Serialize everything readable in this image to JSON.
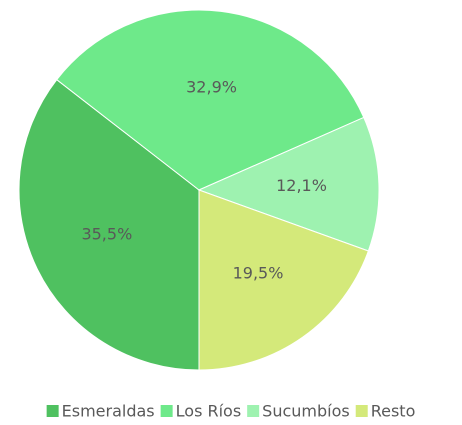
{
  "chart_data": {
    "type": "pie",
    "categories": [
      "Esmeraldas",
      "Los Ríos",
      "Sucumbíos",
      "Resto"
    ],
    "values": [
      35.5,
      32.9,
      12.1,
      19.5
    ],
    "value_labels": [
      "35,5%",
      "32,9%",
      "12,1%",
      "19,5%"
    ],
    "colors": [
      "#4fc160",
      "#6ee98a",
      "#9ef2b0",
      "#d4e97a"
    ],
    "legend": "bottom"
  }
}
